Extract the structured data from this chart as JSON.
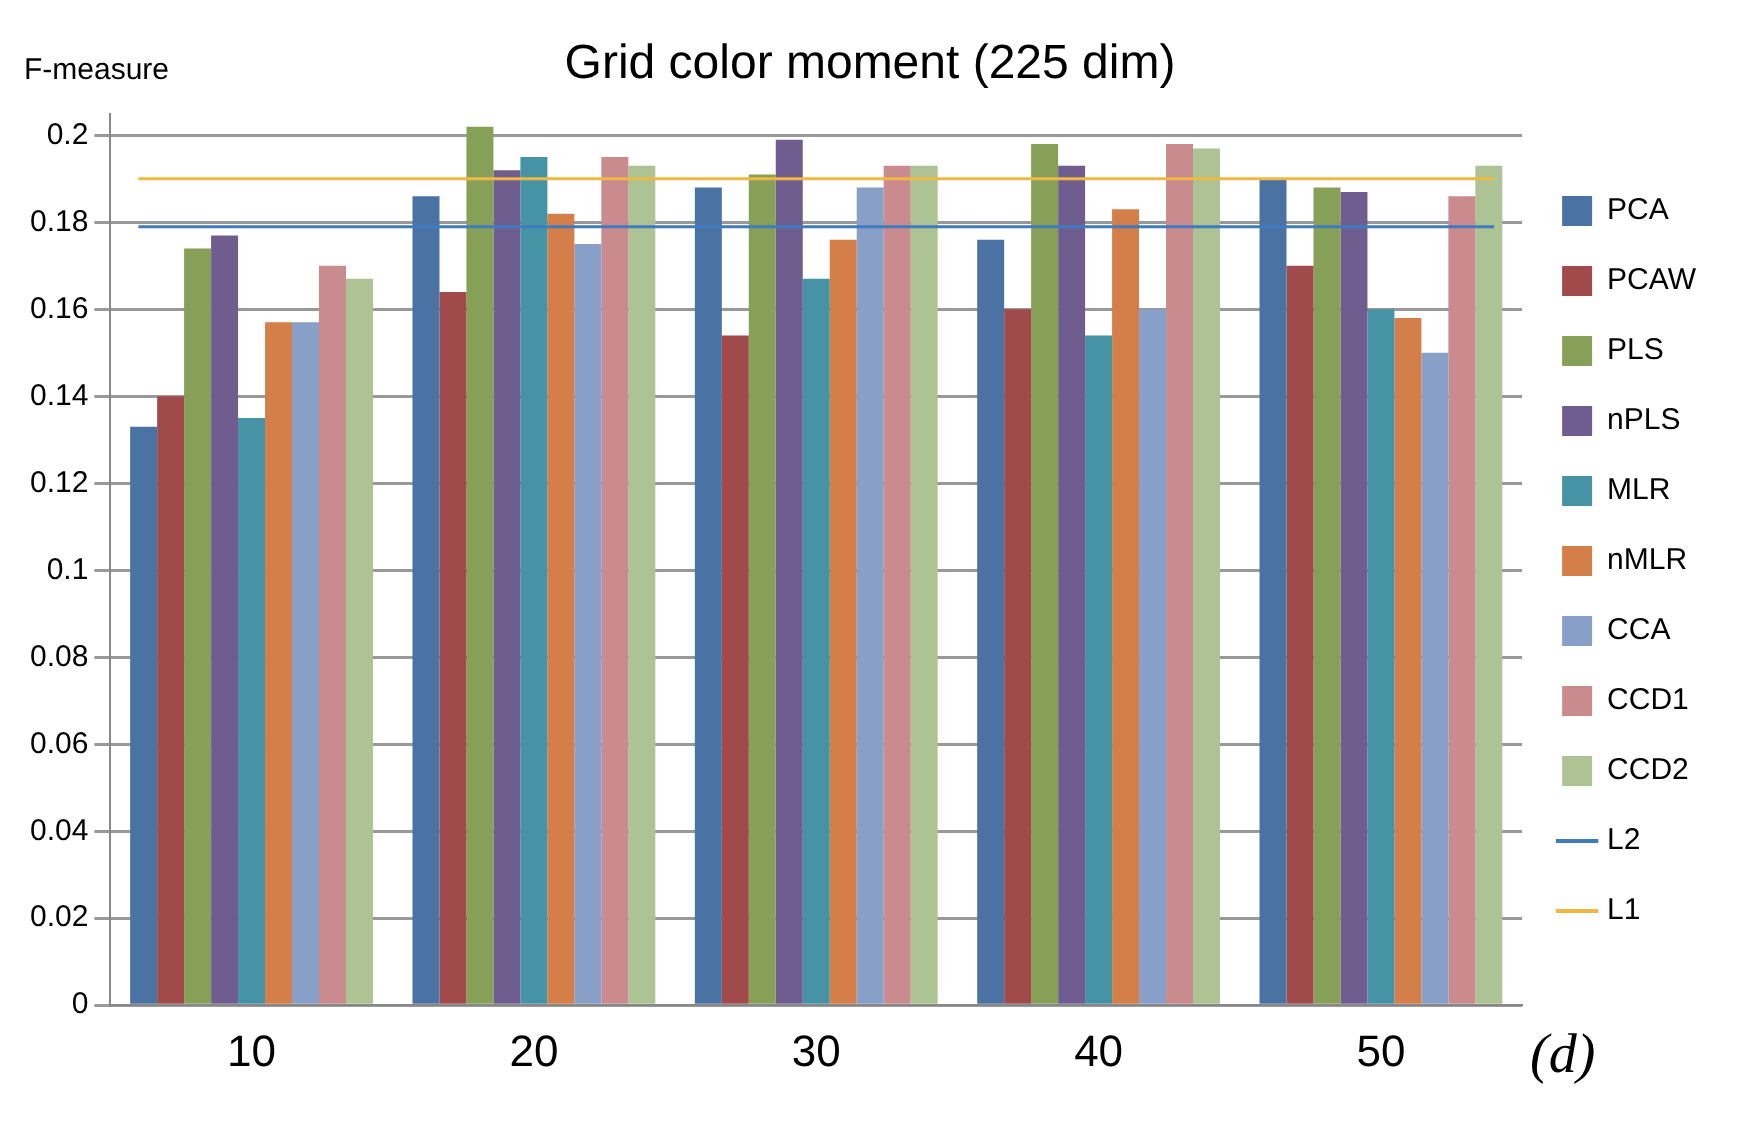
{
  "chart_data": {
    "type": "bar",
    "title": "Grid color moment (225 dim)",
    "ylabel": "F-measure",
    "xlabel": "(d)",
    "categories": [
      "10",
      "20",
      "30",
      "40",
      "50"
    ],
    "series": [
      {
        "name": "PCA",
        "color": "#4a73a3",
        "values": [
          0.133,
          0.186,
          0.188,
          0.176,
          0.19
        ]
      },
      {
        "name": "PCAW",
        "color": "#a14a4c",
        "values": [
          0.14,
          0.164,
          0.154,
          0.16,
          0.17
        ]
      },
      {
        "name": "PLS",
        "color": "#86a057",
        "values": [
          0.174,
          0.202,
          0.191,
          0.198,
          0.188
        ]
      },
      {
        "name": "nPLS",
        "color": "#705d8f",
        "values": [
          0.177,
          0.192,
          0.199,
          0.193,
          0.187
        ]
      },
      {
        "name": "MLR",
        "color": "#4693a6",
        "values": [
          0.135,
          0.195,
          0.167,
          0.154,
          0.16
        ]
      },
      {
        "name": "nMLR",
        "color": "#d47f49",
        "values": [
          0.157,
          0.182,
          0.176,
          0.183,
          0.158
        ]
      },
      {
        "name": "CCA",
        "color": "#889fc8",
        "values": [
          0.157,
          0.175,
          0.188,
          0.16,
          0.15
        ]
      },
      {
        "name": "CCD1",
        "color": "#c98b8e",
        "values": [
          0.17,
          0.195,
          0.193,
          0.198,
          0.186
        ]
      },
      {
        "name": "CCD2",
        "color": "#adc393",
        "values": [
          0.167,
          0.193,
          0.193,
          0.197,
          0.193
        ]
      }
    ],
    "ref_lines": [
      {
        "axis": "y",
        "value": 0.179,
        "label": "L2",
        "color": "#3f7bbf"
      },
      {
        "axis": "y",
        "value": 0.19,
        "label": "L1",
        "color": "#f0b840"
      }
    ],
    "ylim": [
      0,
      0.205
    ],
    "yticks": [
      0,
      0.02,
      0.04,
      0.06,
      0.08,
      0.1,
      0.12,
      0.14,
      0.16,
      0.18,
      0.2
    ],
    "grid": "y",
    "legend": "right"
  }
}
